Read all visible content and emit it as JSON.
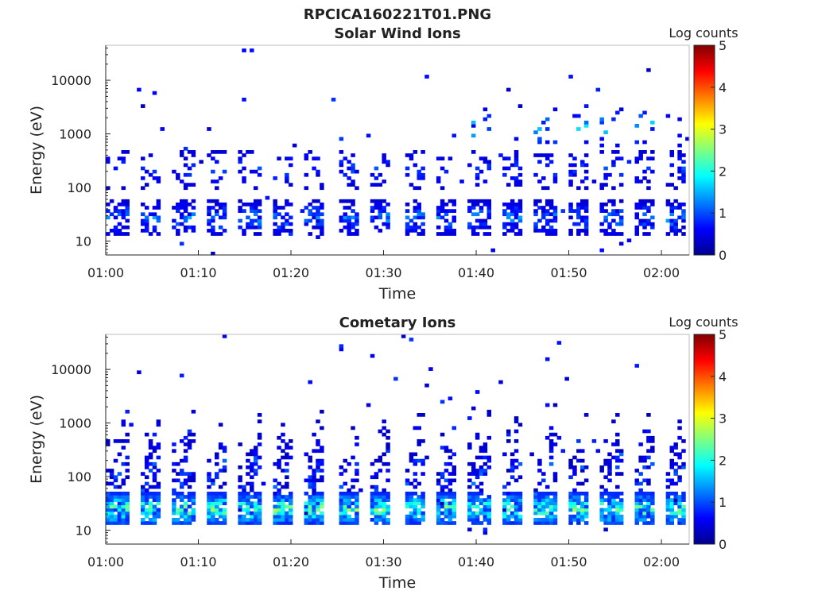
{
  "figure_title": "RPCICA160221T01.PNG",
  "colorbar": {
    "label": "Log counts",
    "ticks": [
      0,
      1,
      2,
      3,
      4,
      5
    ],
    "range": [
      0,
      5
    ],
    "colormap": "jet"
  },
  "chart_data": [
    {
      "type": "heatmap",
      "title": "Solar Wind Ions",
      "xlabel": "Time",
      "ylabel": "Energy (eV)",
      "x_ticks": [
        "01:00",
        "01:10",
        "01:20",
        "01:30",
        "01:40",
        "01:50",
        "02:00"
      ],
      "x_range_minutes": [
        0,
        63
      ],
      "y_scale": "log",
      "y_ticks": [
        10,
        100,
        1000,
        10000
      ],
      "y_range": [
        5.5,
        45000
      ],
      "bands": [
        {
          "e": 27,
          "w": 0.32,
          "p": 0.55,
          "lvl": [
            0.4,
            1.6
          ]
        },
        {
          "e": 220,
          "w": 0.35,
          "p": 0.22,
          "lvl": [
            0.4,
            1.1
          ]
        },
        {
          "e": 1300,
          "w": 0.35,
          "p": 0.1,
          "lvl": [
            0.5,
            2.2
          ],
          "t0": 37
        }
      ],
      "sparse": 0.004
    },
    {
      "type": "heatmap",
      "title": "Cometary Ions",
      "xlabel": "Time",
      "ylabel": "Energy (eV)",
      "x_ticks": [
        "01:00",
        "01:10",
        "01:20",
        "01:30",
        "01:40",
        "01:50",
        "02:00"
      ],
      "x_range_minutes": [
        0,
        63
      ],
      "y_scale": "log",
      "y_ticks": [
        10,
        100,
        1000,
        10000
      ],
      "y_range": [
        5.5,
        45000
      ],
      "bands": [
        {
          "e": 25,
          "w": 0.3,
          "p": 0.85,
          "lvl": [
            0.8,
            3.0
          ]
        },
        {
          "e": 110,
          "w": 0.45,
          "p": 0.35,
          "lvl": [
            0.3,
            1.3
          ]
        },
        {
          "e": 450,
          "w": 0.35,
          "p": 0.12,
          "lvl": [
            0.3,
            0.9
          ]
        }
      ],
      "sparse": 0.005
    }
  ]
}
